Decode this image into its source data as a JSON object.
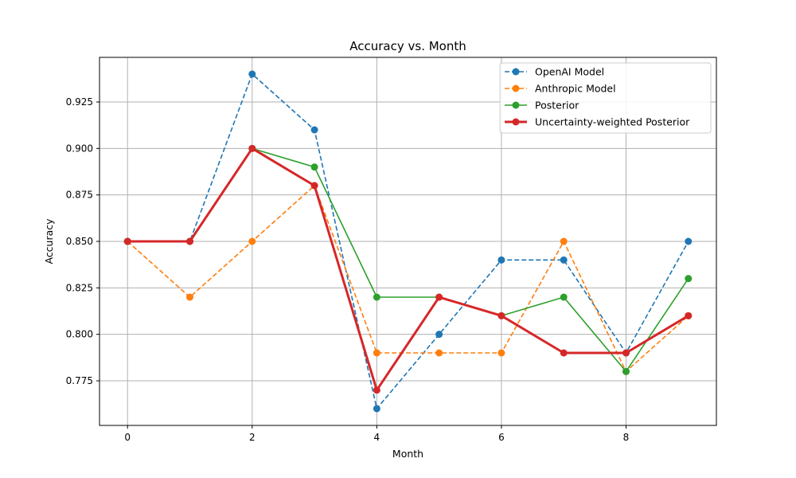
{
  "chart_data": {
    "type": "line",
    "title": "Accuracy vs. Month",
    "xlabel": "Month",
    "ylabel": "Accuracy",
    "x": [
      0,
      1,
      2,
      3,
      4,
      5,
      6,
      7,
      8,
      9
    ],
    "xlim": [
      -0.45,
      9.45
    ],
    "ylim": [
      0.751,
      0.949
    ],
    "xticks": [
      0,
      2,
      4,
      6,
      8
    ],
    "yticks": [
      0.775,
      0.8,
      0.825,
      0.85,
      0.875,
      0.9,
      0.925
    ],
    "ytick_labels": [
      "0.775",
      "0.800",
      "0.825",
      "0.850",
      "0.875",
      "0.900",
      "0.925"
    ],
    "grid": true,
    "legend_position": "top-right",
    "series": [
      {
        "name": "OpenAI Model",
        "color": "#1f77b4",
        "line_style": "dashed",
        "marker": "circle",
        "values": [
          0.85,
          0.85,
          0.94,
          0.91,
          0.76,
          0.8,
          0.84,
          0.84,
          0.79,
          0.85
        ]
      },
      {
        "name": "Anthropic Model",
        "color": "#ff7f0e",
        "line_style": "dashed",
        "marker": "circle",
        "values": [
          0.85,
          0.82,
          0.85,
          0.88,
          0.79,
          0.79,
          0.79,
          0.85,
          0.78,
          0.81
        ]
      },
      {
        "name": "Posterior",
        "color": "#2ca02c",
        "line_style": "solid",
        "marker": "circle",
        "values": [
          0.85,
          0.85,
          0.9,
          0.89,
          0.82,
          0.82,
          0.81,
          0.82,
          0.78,
          0.83
        ]
      },
      {
        "name": "Uncertainty-weighted Posterior",
        "color": "#d62728",
        "line_style": "solid-bold",
        "marker": "circle",
        "values": [
          0.85,
          0.85,
          0.9,
          0.88,
          0.77,
          0.82,
          0.81,
          0.79,
          0.79,
          0.81
        ]
      }
    ]
  }
}
